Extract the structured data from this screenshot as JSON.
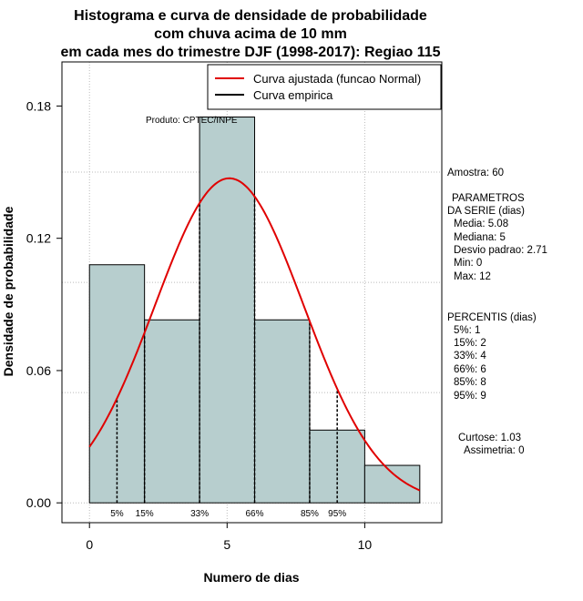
{
  "chart_data": {
    "type": "histogram",
    "title": [
      "Histograma e curva de densidade de probabilidade",
      "com chuva acima de 10 mm",
      "em cada mes do trimestre DJF (1998-2017): Regiao 115"
    ],
    "xlabel": "Numero de dias",
    "ylabel": "Densidade de probabilidade",
    "xlim": [
      -1,
      12.8
    ],
    "ylim": [
      -0.009,
      0.2
    ],
    "x_ticks": [
      0,
      5,
      10
    ],
    "y_ticks": [
      0.0,
      0.06,
      0.12,
      0.18
    ],
    "y_tick_labels": [
      "0.00",
      "0.06",
      "0.12",
      "0.18"
    ],
    "grid": true,
    "bins": [
      {
        "x0": 0,
        "x1": 2,
        "density": 0.108
      },
      {
        "x0": 2,
        "x1": 4,
        "density": 0.083
      },
      {
        "x0": 4,
        "x1": 6,
        "density": 0.175
      },
      {
        "x0": 6,
        "x1": 8,
        "density": 0.083
      },
      {
        "x0": 8,
        "x1": 10,
        "density": 0.033
      },
      {
        "x0": 10,
        "x1": 12,
        "density": 0.017
      }
    ],
    "bar_color": "#b7cece",
    "normal_fit": {
      "mean": 5.08,
      "sd": 2.71,
      "x_range": [
        0,
        12
      ],
      "color": "#e00000"
    },
    "percentile_lines": [
      {
        "label": "5%",
        "x": 1
      },
      {
        "label": "15%",
        "x": 2
      },
      {
        "label": "33%",
        "x": 4
      },
      {
        "label": "66%",
        "x": 6
      },
      {
        "label": "85%",
        "x": 8
      },
      {
        "label": "95%",
        "x": 9
      }
    ],
    "legend": {
      "position": "top-right",
      "entries": [
        {
          "label": "Curva ajustada (funcao Normal)",
          "color": "#e00000"
        },
        {
          "label": "Curva empirica",
          "color": "#000000"
        }
      ]
    },
    "annotation": "Produto: CPTEC/INPE"
  },
  "stats": {
    "sample": "Amostra: 60",
    "params_title_1": "PARAMETROS",
    "params_title_2": "DA SERIE (dias)",
    "params": [
      "Media: 5.08",
      "Mediana: 5",
      "Desvio padrao: 2.71",
      "Min: 0",
      "Max: 12"
    ],
    "percentiles_title": "PERCENTIS (dias)",
    "percentiles": [
      "5%: 1",
      "15%: 2",
      "33%: 4",
      "66%: 6",
      "85%: 8",
      "95%: 9"
    ],
    "kurtosis": "Curtose: 1.03",
    "skewness": "Assimetria: 0"
  }
}
